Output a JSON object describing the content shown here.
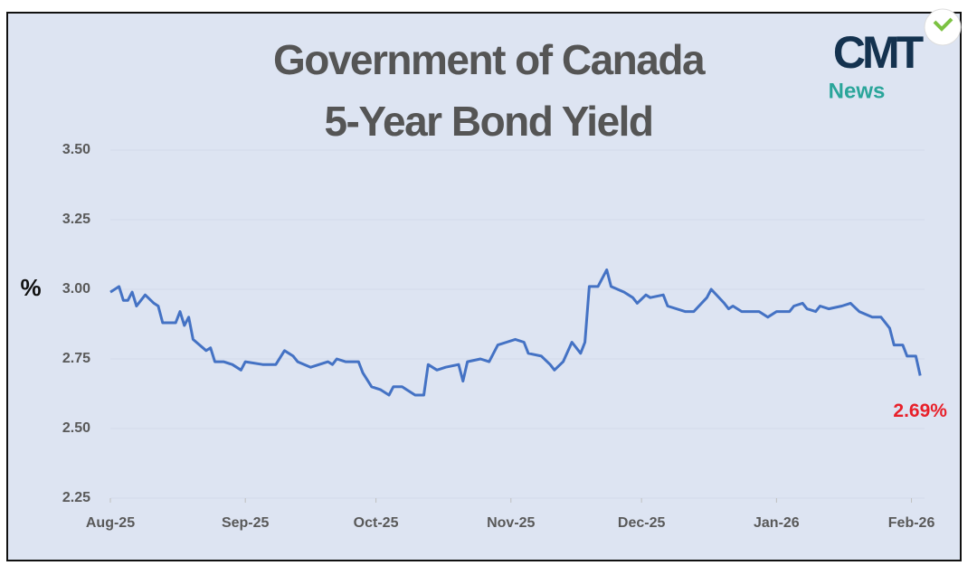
{
  "chart_data": {
    "type": "line",
    "title": [
      "Government of Canada",
      "5-Year Bond Yield"
    ],
    "y_label": "%",
    "logo": {
      "text": "CMT",
      "subtext": "News"
    },
    "annotation": "2.69%",
    "color": "#4472c4",
    "grid": true,
    "xlim": [
      0,
      187
    ],
    "xticks": [
      {
        "value": 0,
        "label": "Aug-25"
      },
      {
        "value": 31,
        "label": "Sep-25"
      },
      {
        "value": 61,
        "label": "Oct-25"
      },
      {
        "value": 92,
        "label": "Nov-25"
      },
      {
        "value": 122,
        "label": "Dec-25"
      },
      {
        "value": 153,
        "label": "Jan-26"
      },
      {
        "value": 184,
        "label": "Feb-26"
      }
    ],
    "ylim": [
      2.25,
      3.5
    ],
    "yticks": [
      {
        "value": 2.25,
        "label": "2.25"
      },
      {
        "value": 2.5,
        "label": "2.50"
      },
      {
        "value": 2.75,
        "label": "2.75"
      },
      {
        "value": 3.0,
        "label": "3.00"
      },
      {
        "value": 3.25,
        "label": "3.25"
      },
      {
        "value": 3.5,
        "label": "3.50"
      }
    ],
    "x": [
      0,
      2,
      3,
      4,
      5,
      6,
      7,
      8,
      10,
      11,
      12,
      15,
      16,
      17,
      18,
      19,
      22,
      23,
      24,
      26,
      28,
      30,
      31,
      35,
      38,
      40,
      42,
      43,
      46,
      50,
      51,
      52,
      54,
      57,
      58,
      60,
      62,
      64,
      65,
      67,
      68,
      70,
      72,
      73,
      75,
      77,
      80,
      81,
      82,
      85,
      87,
      89,
      91,
      93,
      95,
      96,
      99,
      101,
      102,
      104,
      106,
      108,
      109,
      110,
      112,
      114,
      115,
      118,
      120,
      121,
      123,
      124,
      127,
      128,
      132,
      134,
      137,
      138,
      141,
      142,
      143,
      145,
      149,
      151,
      153,
      156,
      157,
      159,
      160,
      162,
      163,
      165,
      168,
      170,
      172,
      175,
      177,
      179,
      180,
      182,
      183,
      185,
      186
    ],
    "values": [
      2.99,
      3.01,
      2.96,
      2.96,
      2.99,
      2.94,
      2.96,
      2.98,
      2.95,
      2.94,
      2.88,
      2.88,
      2.92,
      2.87,
      2.9,
      2.82,
      2.78,
      2.79,
      2.74,
      2.74,
      2.73,
      2.71,
      2.74,
      2.73,
      2.73,
      2.78,
      2.76,
      2.74,
      2.72,
      2.74,
      2.73,
      2.75,
      2.74,
      2.74,
      2.7,
      2.65,
      2.64,
      2.62,
      2.65,
      2.65,
      2.64,
      2.62,
      2.62,
      2.73,
      2.71,
      2.72,
      2.73,
      2.67,
      2.74,
      2.75,
      2.74,
      2.8,
      2.81,
      2.82,
      2.81,
      2.77,
      2.76,
      2.73,
      2.71,
      2.74,
      2.81,
      2.77,
      2.81,
      3.01,
      3.01,
      3.07,
      3.01,
      2.99,
      2.97,
      2.95,
      2.98,
      2.97,
      2.98,
      2.94,
      2.92,
      2.92,
      2.97,
      3.0,
      2.95,
      2.93,
      2.94,
      2.92,
      2.92,
      2.9,
      2.92,
      2.92,
      2.94,
      2.95,
      2.93,
      2.92,
      2.94,
      2.93,
      2.94,
      2.95,
      2.92,
      2.9,
      2.9,
      2.86,
      2.8,
      2.8,
      2.76,
      2.76,
      2.69
    ]
  }
}
